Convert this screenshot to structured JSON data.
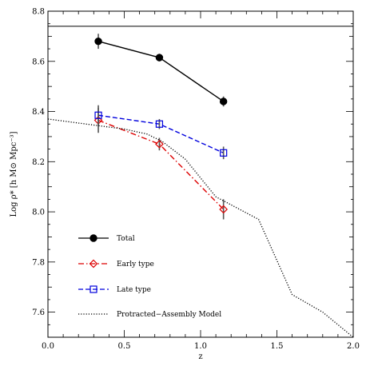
{
  "chart_data": {
    "type": "line",
    "xlabel": "z",
    "ylabel": "Log ρ* [h M⊙ Mpc⁻³]",
    "xlim": [
      0.0,
      2.0
    ],
    "ylim": [
      7.5,
      8.8
    ],
    "x_ticks": [
      0.0,
      0.5,
      1.0,
      1.5,
      2.0
    ],
    "x_tick_labels": [
      "0.0",
      "0.5",
      "1.0",
      "1.5",
      "2.0"
    ],
    "y_ticks": [
      7.6,
      7.8,
      8.0,
      8.2,
      8.4,
      8.6,
      8.8
    ],
    "y_tick_labels": [
      "7.6",
      "7.8",
      "8.0",
      "8.2",
      "8.4",
      "8.6",
      "8.8"
    ],
    "grid": false,
    "legend_position": "bottom-left",
    "reference_line": {
      "y": 8.74,
      "color": "#000000"
    },
    "series": [
      {
        "name": "Total",
        "color": "#000000",
        "marker": "filled-circle",
        "line_style": "solid",
        "x": [
          0.33,
          0.73,
          1.15
        ],
        "y": [
          8.68,
          8.615,
          8.44
        ],
        "yerr": [
          0.03,
          0.015,
          0.02
        ]
      },
      {
        "name": "Early type",
        "color": "#dd0000",
        "marker": "open-diamond",
        "line_style": "dash-dot",
        "x": [
          0.33,
          0.73,
          1.15
        ],
        "y": [
          8.365,
          8.27,
          8.01
        ],
        "yerr": [
          0.05,
          0.025,
          0.04
        ]
      },
      {
        "name": "Late type",
        "color": "#0000dd",
        "marker": "open-square",
        "line_style": "dashed",
        "x": [
          0.33,
          0.73,
          1.15
        ],
        "y": [
          8.385,
          8.35,
          8.235
        ],
        "yerr": [
          0.04,
          0.02,
          0.025
        ]
      },
      {
        "name": "Protracted−Assembly Model",
        "color": "#000000",
        "marker": "none",
        "line_style": "dotted",
        "x": [
          0.0,
          0.25,
          0.5,
          0.65,
          0.75,
          0.9,
          1.1,
          1.38,
          1.6,
          1.8,
          2.0
        ],
        "y": [
          8.37,
          8.35,
          8.33,
          8.31,
          8.28,
          8.21,
          8.06,
          7.97,
          7.67,
          7.6,
          7.5
        ]
      }
    ]
  }
}
